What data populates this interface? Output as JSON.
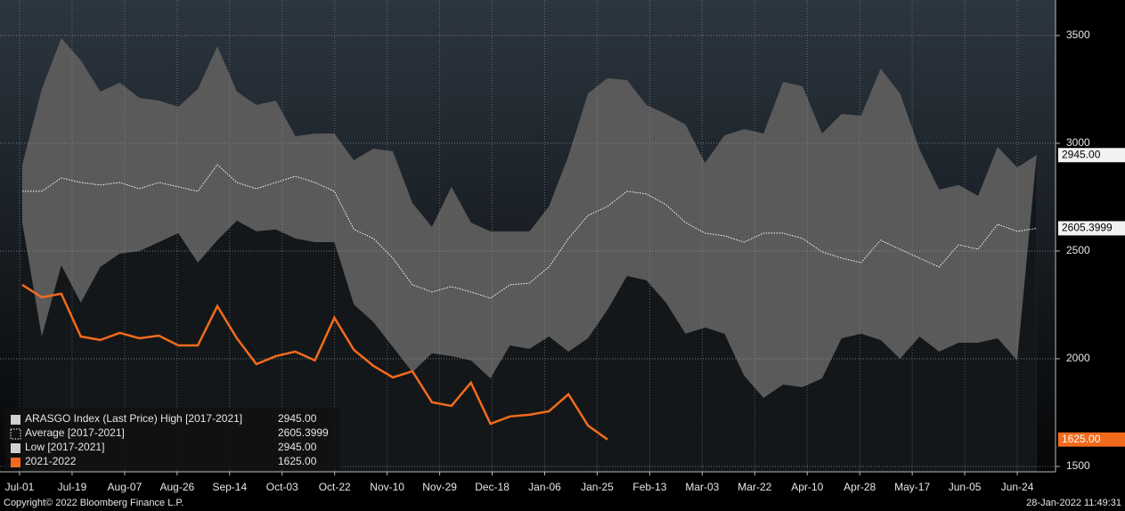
{
  "chart_data": {
    "type": "line",
    "ylim": [
      1475,
      3665
    ],
    "yticks": [
      1500,
      2000,
      2500,
      3000,
      3500
    ],
    "grid": true,
    "xtick_labels": [
      "Jul-01",
      "Jul-19",
      "Aug-07",
      "Aug-26",
      "Sep-14",
      "Oct-03",
      "Oct-22",
      "Nov-10",
      "Nov-29",
      "Dec-18",
      "Jan-06",
      "Jan-25",
      "Feb-13",
      "Mar-03",
      "Mar-22",
      "Apr-10",
      "Apr-28",
      "May-17",
      "Jun-05",
      "Jun-24"
    ],
    "legend": "lower left",
    "footer_left": "Copyright© 2022 Bloomberg Finance L.P.",
    "footer_right": "28-Jan-2022 11:49:31",
    "series": [
      {
        "name": "ARASGO Index (Last Price) High [2017-2021]",
        "legend_value": "2945.00",
        "tag": "2945.00",
        "style": "area",
        "color": "#5a5a5a",
        "values": [
          2900,
          3252,
          3488,
          3385,
          3240,
          3281,
          3211,
          3198,
          3170,
          3252,
          3450,
          3240,
          3178,
          3198,
          3033,
          3045,
          3045,
          2921,
          2975,
          2963,
          2723,
          2612,
          2798,
          2632,
          2591,
          2591,
          2591,
          2707,
          2942,
          3231,
          3302,
          3293,
          3178,
          3136,
          3087,
          2909,
          3037,
          3066,
          3045,
          3285,
          3264,
          3045,
          3136,
          3128,
          3347,
          3231,
          2971,
          2785,
          2806,
          2756,
          2983,
          2888,
          2945
        ]
      },
      {
        "name": "Average  [2017-2021]",
        "legend_value": "2605.3999",
        "tag": "2605.3999",
        "style": "dotted",
        "color": "#ffffff",
        "values": [
          2777,
          2777,
          2839,
          2818,
          2806,
          2818,
          2789,
          2818,
          2798,
          2777,
          2901,
          2818,
          2789,
          2818,
          2847,
          2818,
          2777,
          2600,
          2558,
          2467,
          2343,
          2310,
          2335,
          2310,
          2281,
          2343,
          2351,
          2426,
          2558,
          2665,
          2707,
          2777,
          2765,
          2715,
          2632,
          2583,
          2570,
          2541,
          2583,
          2583,
          2558,
          2496,
          2467,
          2446,
          2550,
          2508,
          2467,
          2426,
          2529,
          2508,
          2624,
          2591,
          2605.3999
        ]
      },
      {
        "name": "Low  [2017-2021]",
        "legend_value": "2945.00",
        "style": "low-area",
        "color": "#141719",
        "values": [
          2632,
          2103,
          2434,
          2260,
          2426,
          2488,
          2500,
          2541,
          2583,
          2446,
          2550,
          2641,
          2591,
          2600,
          2558,
          2541,
          2541,
          2252,
          2170,
          2054,
          1938,
          2025,
          2012,
          1992,
          1909,
          2062,
          2046,
          2103,
          2033,
          2095,
          2227,
          2384,
          2364,
          2260,
          2116,
          2145,
          2116,
          1922,
          1818,
          1880,
          1868,
          1909,
          2095,
          2116,
          2087,
          2000,
          2103,
          2033,
          2074,
          2074,
          2095,
          1992,
          2945
        ]
      },
      {
        "name": "2021-2022",
        "legend_value": "1625.00",
        "tag": "1625.00",
        "style": "line",
        "color": "#f26b1d",
        "values": [
          2343,
          2285,
          2302,
          2103,
          2087,
          2120,
          2095,
          2107,
          2062,
          2062,
          2244,
          2095,
          1975,
          2012,
          2033,
          1992,
          2190,
          2041,
          1967,
          1913,
          1942,
          1798,
          1781,
          1889,
          1698,
          1732,
          1740,
          1756,
          1835,
          1690,
          1625,
          null,
          null,
          null,
          null,
          null,
          null,
          null,
          null,
          null,
          null,
          null,
          null,
          null,
          null,
          null,
          null,
          null,
          null,
          null,
          null,
          null,
          null
        ]
      }
    ]
  }
}
